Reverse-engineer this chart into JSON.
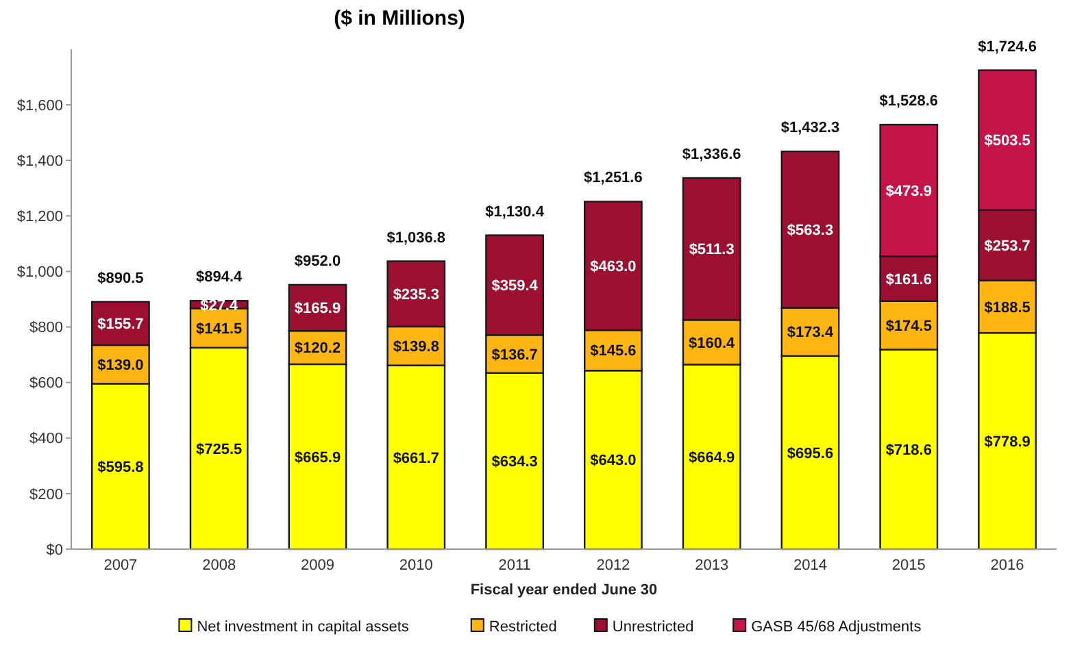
{
  "chart_data": {
    "type": "bar",
    "title": "($ in Millions)",
    "xlabel": "Fiscal year ended June 30",
    "stacked": true,
    "categories": [
      "2007",
      "2008",
      "2009",
      "2010",
      "2011",
      "2012",
      "2013",
      "2014",
      "2015",
      "2016"
    ],
    "series": [
      {
        "name": "Net investment in capital assets",
        "color": "#ffff00",
        "values": [
          595.8,
          725.5,
          665.9,
          661.7,
          634.3,
          643.0,
          664.9,
          695.6,
          718.6,
          778.9
        ],
        "value_labels": [
          "$595.8",
          "$725.5",
          "$665.9",
          "$661.7",
          "$634.3",
          "$643.0",
          "$664.9",
          "$695.6",
          "$718.6",
          "$778.9"
        ]
      },
      {
        "name": "Restricted",
        "color": "#ffb612",
        "values": [
          139.0,
          141.5,
          120.2,
          139.8,
          136.7,
          145.6,
          160.4,
          173.4,
          174.5,
          188.5
        ],
        "value_labels": [
          "$139.0",
          "$141.5",
          "$120.2",
          "$139.8",
          "$136.7",
          "$145.6",
          "$160.4",
          "$173.4",
          "$174.5",
          "$188.5"
        ]
      },
      {
        "name": "Unrestricted",
        "color": "#9b1030",
        "values": [
          155.7,
          27.4,
          165.9,
          235.3,
          359.4,
          463.0,
          511.3,
          563.3,
          161.6,
          253.7
        ],
        "value_labels": [
          "$155.7",
          "$27.4",
          "$165.9",
          "$235.3",
          "$359.4",
          "$463.0",
          "$511.3",
          "$563.3",
          "$161.6",
          "$253.7"
        ]
      },
      {
        "name": "GASB 45/68 Adjustments",
        "color": "#c41448",
        "values": [
          null,
          null,
          null,
          null,
          null,
          null,
          null,
          null,
          473.9,
          503.5
        ],
        "value_labels": [
          null,
          null,
          null,
          null,
          null,
          null,
          null,
          null,
          "$473.9",
          "$503.5"
        ]
      }
    ],
    "totals": [
      "$890.5",
      "$894.4",
      "$952.0",
      "$1,036.8",
      "$1,130.4",
      "$1,251.6",
      "$1,336.6",
      "$1,432.3",
      "$1,528.6",
      "$1,724.6"
    ],
    "ylim": [
      0,
      1800
    ],
    "yticks": [
      {
        "value": 0,
        "label": "$0"
      },
      {
        "value": 200,
        "label": "$200"
      },
      {
        "value": 400,
        "label": "$400"
      },
      {
        "value": 600,
        "label": "$600"
      },
      {
        "value": 800,
        "label": "$800"
      },
      {
        "value": 1000,
        "label": "$1,000"
      },
      {
        "value": 1200,
        "label": "$1,200"
      },
      {
        "value": 1400,
        "label": "$1,400"
      },
      {
        "value": 1600,
        "label": "$1,600"
      }
    ],
    "grid": false,
    "legend": "bottom"
  }
}
